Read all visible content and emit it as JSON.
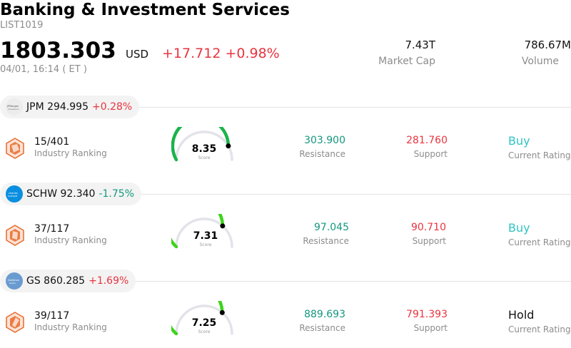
{
  "header": {
    "title": "Banking & Investment Services",
    "code": "LIST1019",
    "price": "1803.303",
    "currency": "USD",
    "change": "+17.712 +0.98%",
    "time": "04/01, 16:14  ( ET )",
    "market_cap_value": "7.43T",
    "market_cap_label": "Market Cap",
    "volume_value": "786.67M",
    "volume_label": "Volume"
  },
  "stocks": [
    {
      "ticker_line": "JPM 294.995",
      "change": "+0.28%",
      "rank": "15/401",
      "rank_label": "Industry Ranking",
      "score": "8.35",
      "score_value": 8.35,
      "score_label": "Score",
      "resistance": "303.900",
      "resistance_label": "Resistance",
      "support": "281.760",
      "support_label": "Support",
      "rating": "Buy",
      "rating_label": "Current Rating",
      "logo_icon": "jpm-logo-icon"
    },
    {
      "ticker_line": "SCHW 92.340",
      "change": "-1.75%",
      "rank": "37/117",
      "rank_label": "Industry Ranking",
      "score": "7.31",
      "score_value": 7.31,
      "score_label": "Score",
      "resistance": "97.045",
      "resistance_label": "Resistance",
      "support": "90.710",
      "support_label": "Support",
      "rating": "Buy",
      "rating_label": "Current Rating",
      "logo_icon": "schwab-logo-icon"
    },
    {
      "ticker_line": "GS 860.285",
      "change": "+1.69%",
      "rank": "39/117",
      "rank_label": "Industry Ranking",
      "score": "7.25",
      "score_value": 7.25,
      "score_label": "Score",
      "resistance": "889.693",
      "resistance_label": "Resistance",
      "support": "791.393",
      "support_label": "Support",
      "rating": "Hold",
      "rating_label": "Current Rating",
      "logo_icon": "goldman-logo-icon"
    }
  ],
  "colors": {
    "positive": "#e8343f",
    "negative": "#14987e",
    "buy": "#31c3c3",
    "gauge_green_dark": "#1bb34a",
    "gauge_green_light": "#3cd41a",
    "rank_orange": "#e86a2a"
  }
}
